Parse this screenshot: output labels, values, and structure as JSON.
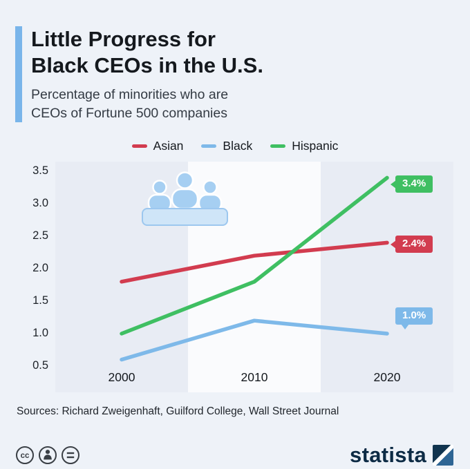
{
  "header": {
    "title_line1": "Little Progress for",
    "title_line2": "Black CEOs in the U.S.",
    "subtitle_line1": "Percentage of minorities who are",
    "subtitle_line2": "CEOs of Fortune 500 companies"
  },
  "chart_data": {
    "type": "line",
    "title": "Little Progress for Black CEOs in the U.S.",
    "subtitle": "Percentage of minorities who are CEOs of Fortune 500 companies",
    "categories": [
      "2000",
      "2010",
      "2020"
    ],
    "series": [
      {
        "name": "Asian",
        "color": "#d23c4f",
        "values": [
          1.8,
          2.2,
          2.4
        ],
        "end_label": "2.4%"
      },
      {
        "name": "Black",
        "color": "#7eb9e9",
        "values": [
          0.6,
          1.2,
          1.0
        ],
        "end_label": "1.0%"
      },
      {
        "name": "Hispanic",
        "color": "#3fbf62",
        "values": [
          1.0,
          1.8,
          3.4
        ],
        "end_label": "3.4%"
      }
    ],
    "ylim": [
      0.5,
      3.5
    ],
    "ytick_labels": [
      "3.5",
      "3.0",
      "2.5",
      "2.0",
      "1.5",
      "1.0",
      "0.5"
    ],
    "xlabel": "",
    "ylabel": "",
    "grid": false,
    "legend_position": "top"
  },
  "style": {
    "accent_color": "#79b5ea",
    "background_color": "#eef2f8",
    "band_color": "#e8ecf4",
    "brand_navy": "#0d2b45"
  },
  "icons": {
    "illustration": "meeting-people",
    "license": [
      "cc",
      "attribution",
      "no-derivatives"
    ]
  },
  "footer": {
    "sources": "Sources: Richard Zweigenhaft, Guilford College, Wall Street Journal",
    "brand": "statista"
  }
}
